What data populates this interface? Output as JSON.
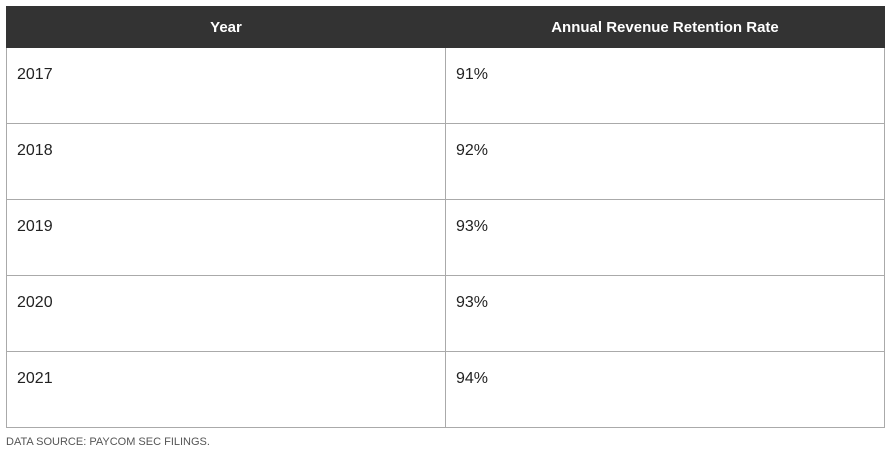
{
  "table": {
    "header": [
      "Year",
      "Annual Revenue Retention Rate"
    ],
    "rows": [
      [
        "2017",
        "91%"
      ],
      [
        "2018",
        "92%"
      ],
      [
        "2019",
        "93%"
      ],
      [
        "2020",
        "93%"
      ],
      [
        "2021",
        "94%"
      ]
    ]
  },
  "source": "DATA SOURCE: PAYCOM SEC FILINGS."
}
